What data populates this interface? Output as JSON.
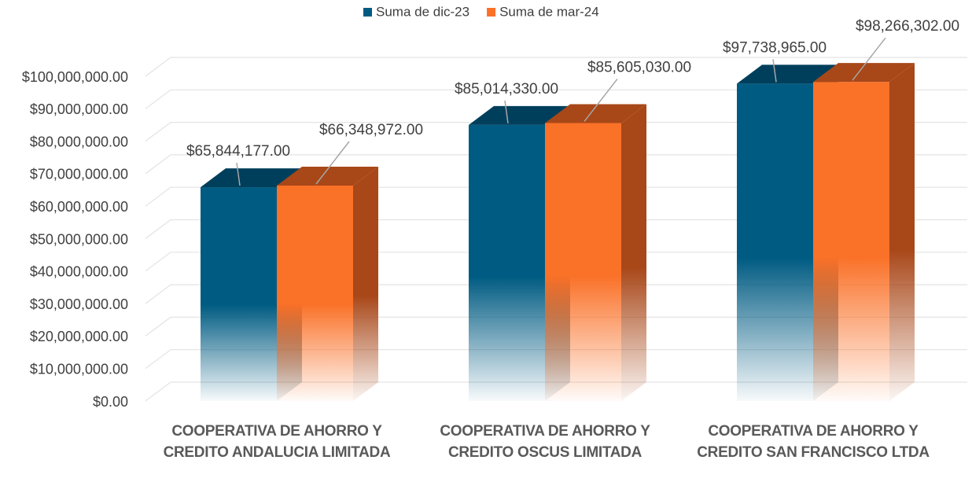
{
  "chart_data": {
    "type": "bar3d",
    "categories": [
      "COOPERATIVA DE AHORRO Y CREDITO ANDALUCIA LIMITADA",
      "COOPERATIVA DE AHORRO Y CREDITO OSCUS LIMITADA",
      "COOPERATIVA DE AHORRO Y CREDITO SAN FRANCISCO LTDA"
    ],
    "series": [
      {
        "name": "Suma de dic-23",
        "color": "#005b82",
        "side": "#003f5c",
        "values": [
          65844177,
          85014330,
          97738965
        ],
        "value_labels": [
          "$65,844,177.00",
          "$85,014,330.00",
          "$97,738,965.00"
        ]
      },
      {
        "name": "Suma de mar-24",
        "color": "#fa7128",
        "side": "#a84718",
        "values": [
          66348972,
          85605030,
          98266302
        ],
        "value_labels": [
          "$66,348,972.00",
          "$85,605,030.00",
          "$98,266,302.00"
        ]
      }
    ],
    "ylim": [
      0,
      100000000
    ],
    "yticks": [
      {
        "value": 0,
        "label": "$0.00"
      },
      {
        "value": 10000000,
        "label": "$10,000,000.00"
      },
      {
        "value": 20000000,
        "label": "$20,000,000.00"
      },
      {
        "value": 30000000,
        "label": "$30,000,000.00"
      },
      {
        "value": 40000000,
        "label": "$40,000,000.00"
      },
      {
        "value": 50000000,
        "label": "$50,000,000.00"
      },
      {
        "value": 60000000,
        "label": "$60,000,000.00"
      },
      {
        "value": 70000000,
        "label": "$70,000,000.00"
      },
      {
        "value": 80000000,
        "label": "$80,000,000.00"
      },
      {
        "value": 90000000,
        "label": "$90,000,000.00"
      },
      {
        "value": 100000000,
        "label": "$100,000,000.00"
      }
    ],
    "grid": true,
    "legend": "top"
  }
}
